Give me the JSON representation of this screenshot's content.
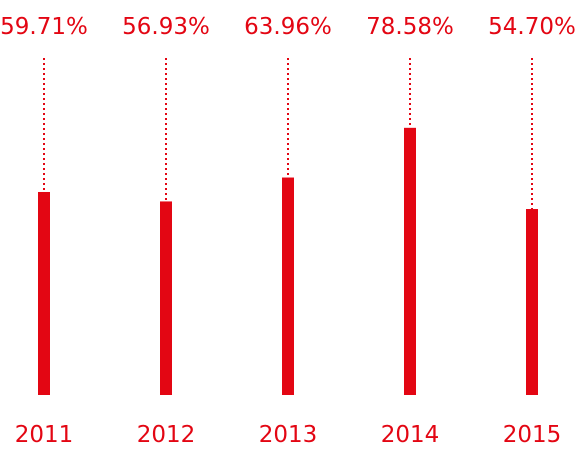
{
  "chart_data": {
    "type": "bar",
    "categories": [
      "2011",
      "2012",
      "2013",
      "2014",
      "2015"
    ],
    "values": [
      59.71,
      56.93,
      63.96,
      78.58,
      54.7
    ],
    "value_labels": [
      "59.71%",
      "56.93%",
      "63.96%",
      "78.58%",
      "54.70%"
    ],
    "title": "",
    "xlabel": "",
    "ylabel": "",
    "ylim": [
      0,
      100
    ],
    "grid": false,
    "legend": "none",
    "bar_color": "#e30613",
    "leader_style": "dotted"
  }
}
